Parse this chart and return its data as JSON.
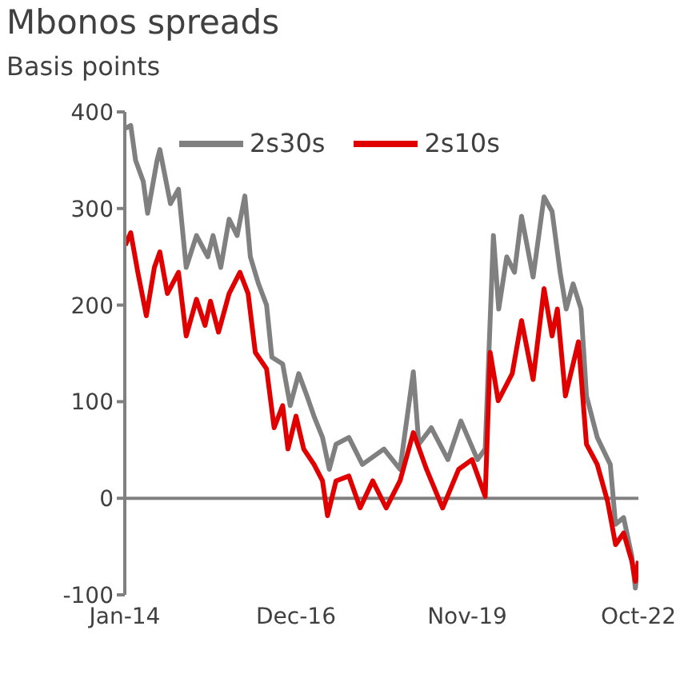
{
  "chart_data": {
    "type": "line",
    "title": "Mbonos spreads",
    "ylabel": "Basis points",
    "xlim": [
      "2014-01",
      "2022-10"
    ],
    "xticks": [
      {
        "value": "2014-01",
        "label": "Jan-14"
      },
      {
        "value": "2016-12",
        "label": "Dec-16"
      },
      {
        "value": "2019-11",
        "label": "Nov-19"
      },
      {
        "value": "2022-10",
        "label": "Oct-22"
      }
    ],
    "ylim": [
      -100,
      400
    ],
    "yticks": [
      -100,
      0,
      100,
      200,
      300,
      400
    ],
    "grid": false,
    "ref_lines": [
      {
        "axis": "y",
        "value": 0,
        "color": "#808080"
      }
    ],
    "legend": "top",
    "marker": "none",
    "line_style": "solid",
    "series": [
      {
        "name": "2s30s",
        "color": "#808080",
        "x": [
          "2014-01-04",
          "2014-02-07",
          "2014-03-09",
          "2014-04-26",
          "2014-05-23",
          "2014-07-21",
          "2014-08-07",
          "2014-10-12",
          "2014-12-01",
          "2015-01-18",
          "2015-03-23",
          "2015-06-01",
          "2015-07-04",
          "2015-08-21",
          "2015-10-12",
          "2015-12-01",
          "2016-01-18",
          "2016-02-21",
          "2016-04-12",
          "2016-06-01",
          "2016-07-04",
          "2016-09-09",
          "2016-10-26",
          "2016-12-18",
          "2017-02-07",
          "2017-03-23",
          "2017-05-15",
          "2017-06-26",
          "2017-08-07",
          "2017-10-26",
          "2018-01-18",
          "2018-06-01",
          "2018-09-09",
          "2018-12-01",
          "2019-01-04",
          "2019-03-23",
          "2019-07-04",
          "2019-09-23",
          "2020-01-04",
          "2020-02-21",
          "2020-04-12",
          "2020-05-15",
          "2020-07-04",
          "2020-08-21",
          "2020-10-04",
          "2020-12-15",
          "2021-02-21",
          "2021-04-12",
          "2021-06-01",
          "2021-07-09",
          "2021-08-21",
          "2021-10-09",
          "2021-11-12",
          "2022-01-18",
          "2022-04-09",
          "2022-05-12",
          "2022-07-01",
          "2022-08-21",
          "2022-09-12",
          "2022-10-01"
        ],
        "values": [
          383,
          386,
          350,
          328,
          295,
          350,
          361,
          305,
          320,
          239,
          272,
          250,
          272,
          239,
          289,
          272,
          313,
          250,
          222,
          200,
          146,
          139,
          96,
          129,
          106,
          85,
          63,
          30,
          56,
          63,
          35,
          51,
          30,
          131,
          56,
          73,
          40,
          80,
          40,
          51,
          272,
          196,
          250,
          234,
          292,
          229,
          312,
          297,
          234,
          196,
          222,
          196,
          106,
          63,
          35,
          -27,
          -20,
          -60,
          -93,
          -65
        ]
      },
      {
        "name": "2s10s",
        "color": "#e00000",
        "x": [
          "2014-01-04",
          "2014-02-07",
          "2014-03-23",
          "2014-05-15",
          "2014-07-04",
          "2014-08-07",
          "2014-09-23",
          "2014-12-01",
          "2015-01-18",
          "2015-03-23",
          "2015-05-15",
          "2015-06-18",
          "2015-08-07",
          "2015-10-12",
          "2015-12-18",
          "2016-02-07",
          "2016-03-23",
          "2016-06-01",
          "2016-07-18",
          "2016-09-09",
          "2016-10-12",
          "2016-12-01",
          "2017-01-18",
          "2017-03-23",
          "2017-05-15",
          "2017-06-15",
          "2017-08-07",
          "2017-10-26",
          "2018-01-04",
          "2018-03-23",
          "2018-06-15",
          "2018-09-09",
          "2018-12-01",
          "2019-02-21",
          "2019-06-01",
          "2019-09-09",
          "2019-12-01",
          "2020-02-21",
          "2020-03-23",
          "2020-05-12",
          "2020-08-07",
          "2020-10-04",
          "2020-12-15",
          "2021-02-21",
          "2021-04-12",
          "2021-05-15",
          "2021-07-04",
          "2021-09-23",
          "2021-11-12",
          "2022-01-18",
          "2022-03-23",
          "2022-05-12",
          "2022-07-01",
          "2022-08-21",
          "2022-09-12",
          "2022-10-01"
        ],
        "values": [
          262,
          275,
          234,
          189,
          239,
          255,
          212,
          234,
          168,
          206,
          179,
          204,
          172,
          212,
          234,
          212,
          151,
          134,
          73,
          96,
          51,
          85,
          51,
          35,
          18,
          -18,
          18,
          23,
          -10,
          18,
          -10,
          18,
          68,
          30,
          -10,
          30,
          40,
          2,
          151,
          101,
          129,
          184,
          123,
          217,
          168,
          196,
          106,
          162,
          56,
          35,
          -3,
          -48,
          -36,
          -65,
          -86,
          -65
        ]
      }
    ]
  }
}
